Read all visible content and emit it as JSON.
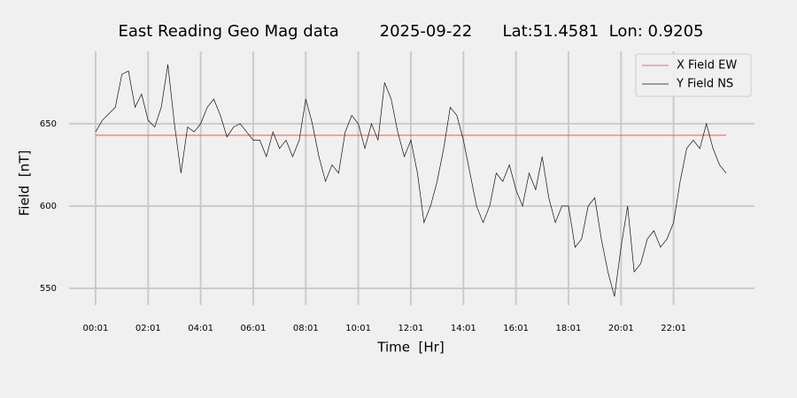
{
  "chart_data": {
    "type": "line",
    "title": "East Reading Geo Mag data        2025-09-22      Lat:51.4581  Lon: 0.9205",
    "xlabel": "Time  [Hr]",
    "ylabel": "Field  [nT]",
    "x": [
      0,
      0.25,
      0.5,
      0.75,
      1,
      1.25,
      1.5,
      1.75,
      2,
      2.25,
      2.5,
      2.75,
      3,
      3.25,
      3.5,
      3.75,
      4,
      4.25,
      4.5,
      4.75,
      5,
      5.25,
      5.5,
      5.75,
      6,
      6.25,
      6.5,
      6.75,
      7,
      7.25,
      7.5,
      7.75,
      8,
      8.25,
      8.5,
      8.75,
      9,
      9.25,
      9.5,
      9.75,
      10,
      10.25,
      10.5,
      10.75,
      11,
      11.25,
      11.5,
      11.75,
      12,
      12.25,
      12.5,
      12.75,
      13,
      13.25,
      13.5,
      13.75,
      14,
      14.25,
      14.5,
      14.75,
      15,
      15.25,
      15.5,
      15.75,
      16,
      16.25,
      16.5,
      16.75,
      17,
      17.25,
      17.5,
      17.75,
      18,
      18.25,
      18.5,
      18.75,
      19,
      19.25,
      19.5,
      19.75,
      20,
      20.25,
      20.5,
      20.75,
      21,
      21.25,
      21.5,
      21.75,
      22,
      22.25,
      22.5,
      22.75,
      23,
      23.25,
      23.5,
      23.75,
      24
    ],
    "series": [
      {
        "name": "X Field EW",
        "color": "#e8413f",
        "values": [
          643,
          643,
          643,
          643,
          643,
          643,
          643,
          643,
          643,
          643,
          643,
          643,
          643,
          643,
          643,
          643,
          643,
          643,
          643,
          643,
          643,
          643,
          643,
          643,
          643,
          643,
          643,
          643,
          643,
          643,
          643,
          643,
          643,
          643,
          643,
          643,
          643,
          643,
          643,
          643,
          643,
          643,
          643,
          643,
          643,
          643,
          643,
          643,
          643,
          643,
          643,
          643,
          643,
          643,
          643,
          643,
          643,
          643,
          643,
          643,
          643,
          643,
          643,
          643,
          643,
          643,
          643,
          643,
          643,
          643,
          643,
          643,
          643,
          643,
          643,
          643,
          643,
          643,
          643,
          643,
          643,
          643,
          643,
          643,
          643,
          643,
          643,
          643,
          643,
          643,
          643,
          643,
          643,
          643,
          643,
          643,
          643
        ]
      },
      {
        "name": "Y Field NS",
        "color": "#111111",
        "values": [
          645,
          652,
          656,
          660,
          680,
          682,
          660,
          668,
          652,
          648,
          660,
          686,
          650,
          620,
          648,
          645,
          650,
          660,
          665,
          655,
          642,
          648,
          650,
          645,
          640,
          640,
          630,
          645,
          635,
          640,
          630,
          640,
          665,
          650,
          630,
          615,
          625,
          620,
          645,
          655,
          650,
          635,
          650,
          640,
          675,
          665,
          645,
          630,
          640,
          620,
          590,
          600,
          615,
          635,
          660,
          655,
          640,
          620,
          600,
          590,
          600,
          620,
          615,
          625,
          610,
          600,
          620,
          610,
          630,
          605,
          590,
          600,
          600,
          575,
          580,
          600,
          605,
          580,
          560,
          545,
          575,
          600,
          560,
          565,
          580,
          585,
          575,
          580,
          590,
          615,
          635,
          640,
          635,
          650,
          635,
          625,
          620
        ]
      }
    ],
    "xlim": [
      -1.01,
      25.08
    ],
    "ylim": [
      539.8,
      694
    ],
    "xticks": [
      {
        "value": 0,
        "label": "00:01"
      },
      {
        "value": 2,
        "label": "02:01"
      },
      {
        "value": 4,
        "label": "04:01"
      },
      {
        "value": 6,
        "label": "06:01"
      },
      {
        "value": 8,
        "label": "08:01"
      },
      {
        "value": 10,
        "label": "10:01"
      },
      {
        "value": 12,
        "label": "12:01"
      },
      {
        "value": 14,
        "label": "14:01"
      },
      {
        "value": 16,
        "label": "16:01"
      },
      {
        "value": 18,
        "label": "18:01"
      },
      {
        "value": 20,
        "label": "20:01"
      },
      {
        "value": 22,
        "label": "22:01"
      }
    ],
    "yticks": [
      550,
      600,
      650
    ],
    "grid": true,
    "legend": "upper right"
  }
}
